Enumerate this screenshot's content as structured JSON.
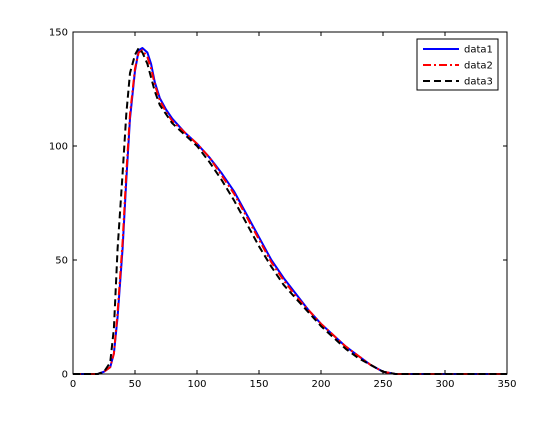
{
  "chart_data": {
    "type": "line",
    "title": "",
    "xlabel": "",
    "ylabel": "",
    "xlim": [
      0,
      350
    ],
    "ylim": [
      0,
      150
    ],
    "xticks": [
      0,
      50,
      100,
      150,
      200,
      250,
      300,
      350
    ],
    "yticks": [
      0,
      50,
      100,
      150
    ],
    "xtick_labels": [
      "0",
      "50",
      "100",
      "150",
      "200",
      "250",
      "300",
      "350"
    ],
    "ytick_labels": [
      "0",
      "50",
      "100",
      "150"
    ],
    "grid": false,
    "legend_position": "top-right",
    "series": [
      {
        "name": "data1",
        "color": "#0000ff",
        "style": "solid",
        "x": [
          0,
          20,
          25,
          30,
          33,
          36,
          40,
          43,
          46,
          50,
          53,
          56,
          60,
          63,
          66,
          70,
          75,
          80,
          90,
          100,
          110,
          120,
          130,
          140,
          150,
          160,
          170,
          180,
          190,
          200,
          210,
          220,
          230,
          240,
          250,
          260,
          270,
          280,
          290,
          300,
          310,
          320,
          330,
          340,
          350
        ],
        "y": [
          0,
          0,
          1,
          3,
          9,
          25,
          55,
          85,
          112,
          133,
          142,
          143,
          141,
          136,
          128,
          121,
          116,
          112,
          106,
          101,
          95,
          88,
          80,
          70,
          60,
          50,
          42,
          35,
          28,
          22,
          17,
          12,
          8,
          4,
          1,
          0,
          0,
          0,
          0,
          0,
          0,
          0,
          0,
          0,
          0
        ]
      },
      {
        "name": "data2",
        "color": "#ff0000",
        "style": "dash-dot",
        "x": [
          0,
          20,
          25,
          30,
          33,
          36,
          40,
          43,
          46,
          50,
          53,
          56,
          60,
          63,
          66,
          70,
          75,
          80,
          90,
          100,
          110,
          120,
          130,
          140,
          150,
          160,
          170,
          180,
          190,
          200,
          210,
          220,
          230,
          240,
          250,
          260,
          270,
          280,
          290,
          300,
          310,
          320,
          330,
          340,
          350
        ],
        "y": [
          0,
          0,
          1,
          3,
          9,
          27,
          58,
          88,
          114,
          134,
          141,
          142,
          139,
          134,
          127,
          120,
          115,
          111,
          106,
          101,
          95,
          87,
          79,
          69,
          59,
          49,
          41,
          34,
          28,
          22,
          17,
          12,
          8,
          4,
          1,
          0,
          0,
          0,
          0,
          0,
          0,
          0,
          0,
          0,
          0
        ]
      },
      {
        "name": "data3",
        "color": "#000000",
        "style": "dashed",
        "x": [
          0,
          20,
          25,
          30,
          33,
          36,
          40,
          43,
          46,
          50,
          53,
          56,
          60,
          63,
          66,
          70,
          75,
          80,
          90,
          100,
          110,
          120,
          130,
          140,
          150,
          160,
          170,
          180,
          190,
          200,
          210,
          220,
          230,
          240,
          250,
          260,
          270,
          280,
          290,
          300,
          310,
          320,
          330,
          340,
          350
        ],
        "y": [
          0,
          0,
          1,
          5,
          20,
          55,
          88,
          114,
          132,
          140,
          143,
          141,
          136,
          130,
          124,
          118,
          114,
          110,
          105,
          100,
          93,
          85,
          76,
          66,
          56,
          47,
          39,
          33,
          27,
          21,
          16,
          11,
          7,
          4,
          1,
          0,
          0,
          0,
          0,
          0,
          0,
          0,
          0,
          0,
          0
        ]
      }
    ]
  }
}
